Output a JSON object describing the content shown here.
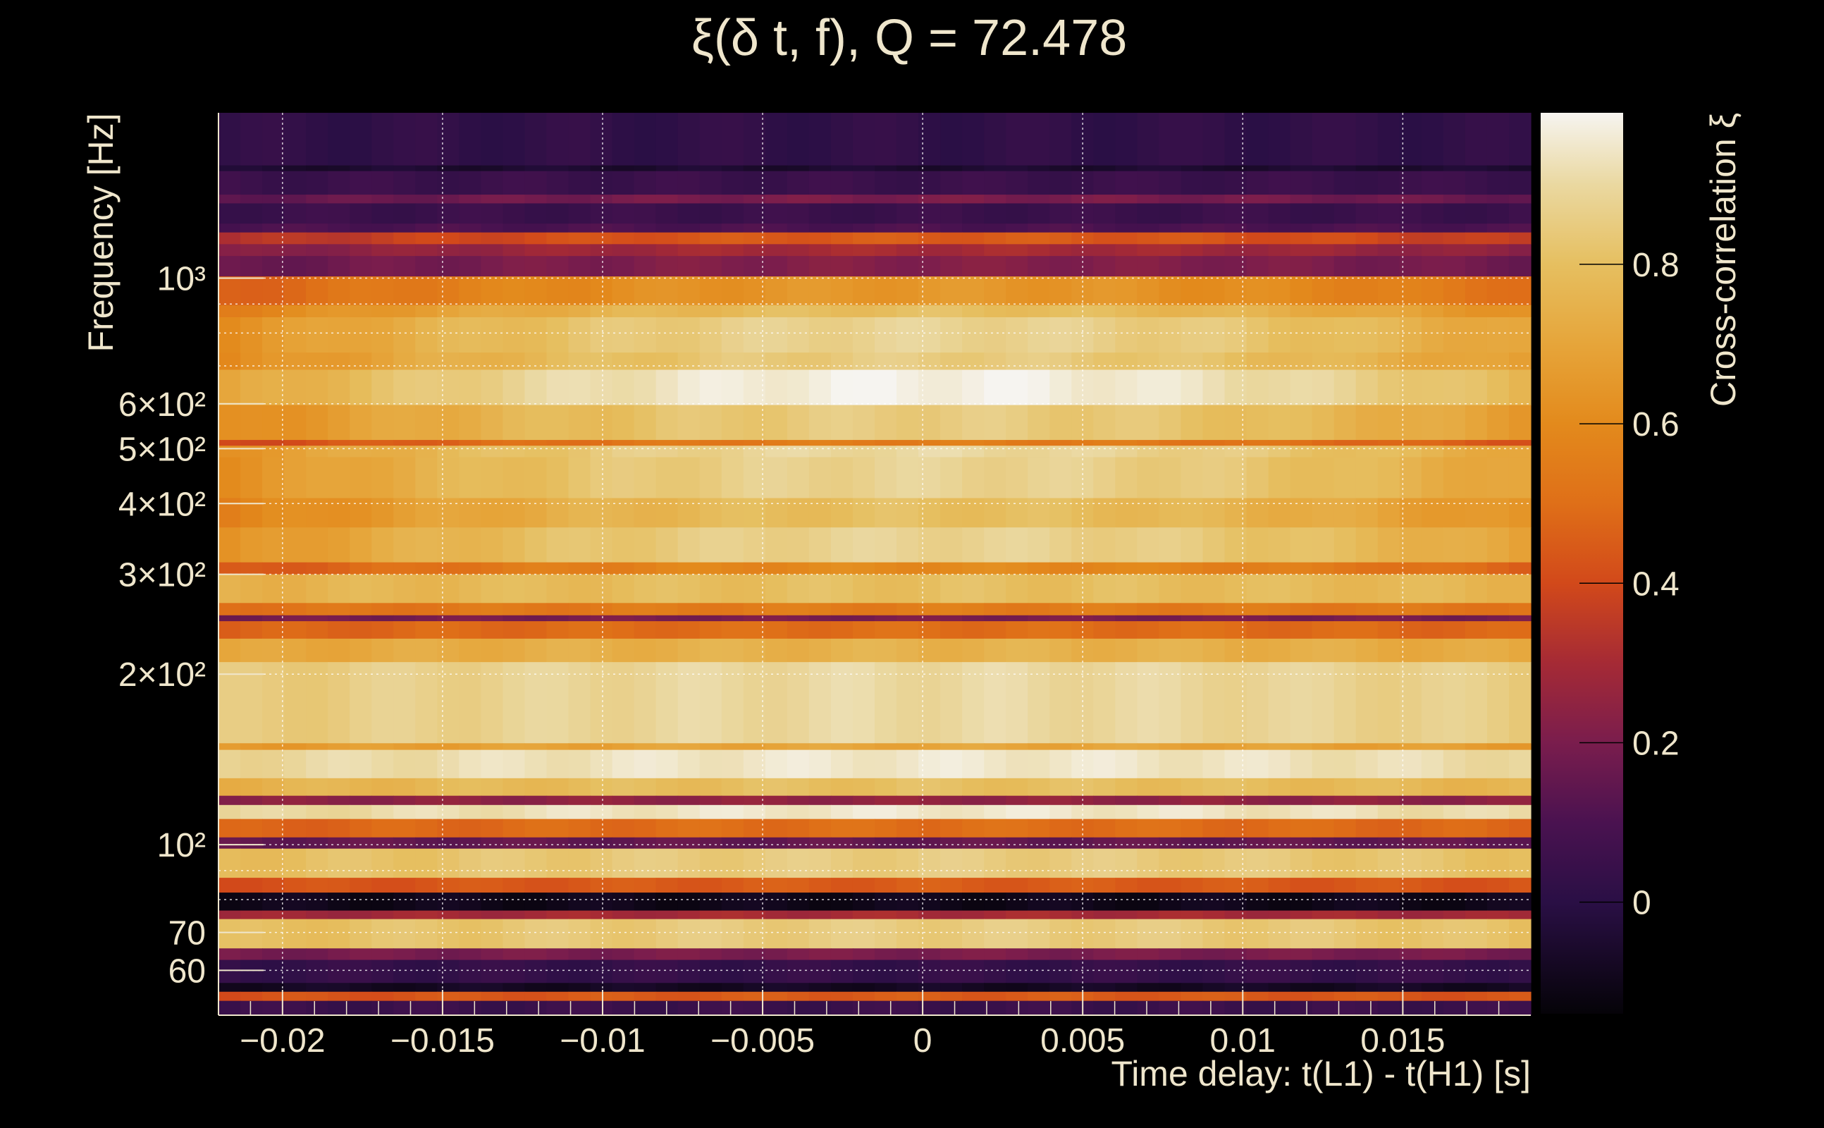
{
  "chart_data": {
    "type": "heatmap",
    "title": "ξ(δ t, f), Q = 72.478",
    "xlabel": "Time delay: t(L1) - t(H1) [s]",
    "ylabel": "Frequency [Hz]",
    "colorbar_label": "Cross-correlation ξ",
    "xlim": [
      -0.022,
      0.019
    ],
    "ylim": [
      50,
      1958
    ],
    "yscale": "log",
    "clim": [
      -0.14,
      0.99
    ],
    "grid": true,
    "x_ticks": [
      {
        "value": -0.02,
        "label": "−0.02"
      },
      {
        "value": -0.015,
        "label": "−0.015"
      },
      {
        "value": -0.01,
        "label": "−0.01"
      },
      {
        "value": -0.005,
        "label": "−0.005"
      },
      {
        "value": 0,
        "label": "0"
      },
      {
        "value": 0.005,
        "label": "0.005"
      },
      {
        "value": 0.01,
        "label": "0.01"
      },
      {
        "value": 0.015,
        "label": "0.015"
      }
    ],
    "y_ticks": [
      {
        "value": 1000,
        "label": "10³"
      },
      {
        "value": 600,
        "label": "6×10²"
      },
      {
        "value": 500,
        "label": "5×10²"
      },
      {
        "value": 400,
        "label": "4×10²"
      },
      {
        "value": 300,
        "label": "3×10²"
      },
      {
        "value": 200,
        "label": "2×10²"
      },
      {
        "value": 100,
        "label": "10²"
      },
      {
        "value": 70,
        "label": "70"
      },
      {
        "value": 60,
        "label": "60"
      }
    ],
    "y_minor_gridlines": [
      60,
      70,
      80,
      90,
      100,
      200,
      300,
      400,
      500,
      600,
      700,
      800,
      900,
      1000
    ],
    "colorbar_ticks": [
      {
        "value": 0.8,
        "label": "0.8"
      },
      {
        "value": 0.6,
        "label": "0.6"
      },
      {
        "value": 0.4,
        "label": "0.4"
      },
      {
        "value": 0.2,
        "label": "0.2"
      },
      {
        "value": 0,
        "label": "0"
      }
    ],
    "colormap": [
      [
        -0.14,
        "#050308"
      ],
      [
        0.0,
        "#2a0f45"
      ],
      [
        0.1,
        "#4a1250"
      ],
      [
        0.2,
        "#7a1d4d"
      ],
      [
        0.3,
        "#a52a35"
      ],
      [
        0.4,
        "#d2491a"
      ],
      [
        0.5,
        "#df6f18"
      ],
      [
        0.6,
        "#e38a1c"
      ],
      [
        0.7,
        "#e6a53a"
      ],
      [
        0.8,
        "#e6bf60"
      ],
      [
        0.9,
        "#ead8a0"
      ],
      [
        0.99,
        "#f6f4f0"
      ]
    ],
    "bands_at_zero_delay": [
      [
        1581,
        1958,
        0.02
      ],
      [
        1545,
        1581,
        -0.05
      ],
      [
        1404,
        1545,
        0.05
      ],
      [
        1355,
        1404,
        0.2
      ],
      [
        1248,
        1355,
        0.05
      ],
      [
        1204,
        1248,
        0.1
      ],
      [
        1148,
        1204,
        0.45
      ],
      [
        1094,
        1148,
        0.3
      ],
      [
        1007,
        1094,
        0.22
      ],
      [
        896,
        1007,
        0.65
      ],
      [
        853,
        896,
        0.8
      ],
      [
        739,
        853,
        0.88
      ],
      [
        689,
        739,
        0.85
      ],
      [
        597,
        689,
        0.98
      ],
      [
        518,
        597,
        0.85
      ],
      [
        506,
        518,
        0.55
      ],
      [
        483,
        506,
        0.9
      ],
      [
        409,
        483,
        0.88
      ],
      [
        363,
        409,
        0.8
      ],
      [
        315,
        363,
        0.88
      ],
      [
        300,
        315,
        0.6
      ],
      [
        267,
        300,
        0.8
      ],
      [
        254,
        267,
        0.55
      ],
      [
        248,
        254,
        0.2
      ],
      [
        231,
        248,
        0.5
      ],
      [
        210,
        231,
        0.75
      ],
      [
        151,
        210,
        0.9
      ],
      [
        147,
        151,
        0.7
      ],
      [
        131,
        147,
        0.95
      ],
      [
        122,
        131,
        0.8
      ],
      [
        117.5,
        122,
        0.25
      ],
      [
        111,
        117.5,
        0.95
      ],
      [
        103,
        111,
        0.5
      ],
      [
        98.4,
        103,
        0.15
      ],
      [
        87.4,
        98.4,
        0.85
      ],
      [
        82.3,
        87.4,
        0.45
      ],
      [
        76.5,
        82.3,
        -0.1
      ],
      [
        73.9,
        76.5,
        0.3
      ],
      [
        65.6,
        73.9,
        0.85
      ],
      [
        62.6,
        65.6,
        0.2
      ],
      [
        57,
        62.6,
        0.03
      ],
      [
        55,
        57,
        -0.08
      ],
      [
        53,
        55,
        0.45
      ],
      [
        50,
        53,
        0.05
      ]
    ],
    "time_falloff": {
      "high_freq_above": 300,
      "high_freq_drop": 0.25,
      "low_freq_drop": 0.06,
      "reference_delay": 0.02
    }
  }
}
